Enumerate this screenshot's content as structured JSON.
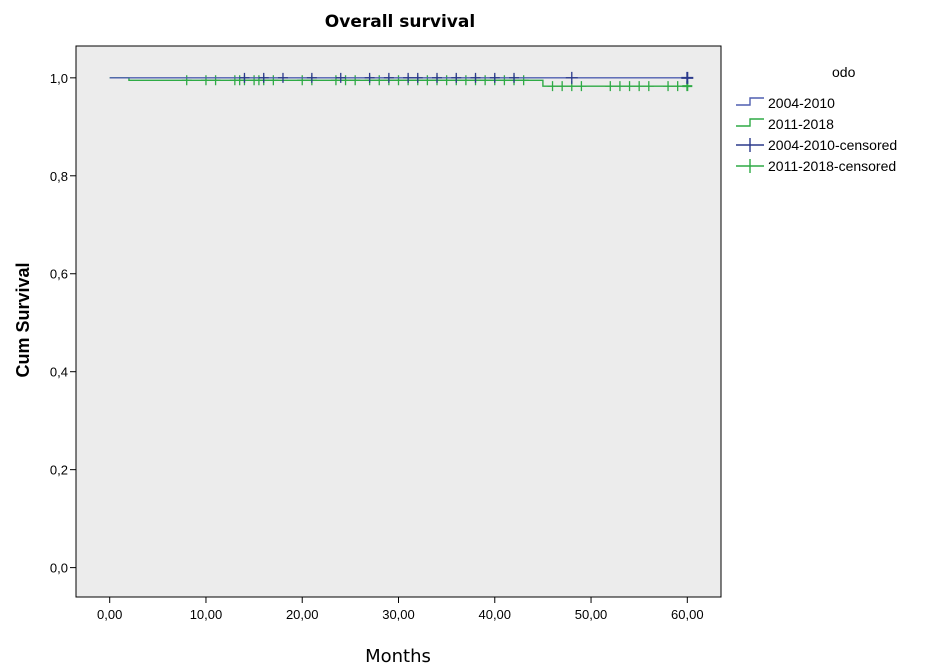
{
  "chart_data": {
    "type": "line",
    "title": "Overall survival",
    "xlabel": "Months",
    "ylabel": "Cum Survival",
    "xlim": [
      -3.5,
      63.5
    ],
    "ylim": [
      -0.06,
      1.065
    ],
    "x_ticks": [
      0,
      10,
      20,
      30,
      40,
      50,
      60
    ],
    "x_tick_labels": [
      "0,00",
      "10,00",
      "20,00",
      "30,00",
      "40,00",
      "50,00",
      "60,00"
    ],
    "y_ticks": [
      0,
      0.2,
      0.4,
      0.6,
      0.8,
      1.0
    ],
    "y_tick_labels": [
      "0,0",
      "0,2",
      "0,4",
      "0,6",
      "0,8",
      "1,0"
    ],
    "grid": false,
    "plot_background": "#ececec",
    "legend": {
      "position": "right",
      "title": "odo",
      "entries": [
        "2004-2010",
        "2011-2018",
        "2004-2010-censored",
        "2011-2018-censored"
      ]
    },
    "series": [
      {
        "name": "2004-2010",
        "color": "#4f5fb0",
        "step": [
          [
            0,
            1.0
          ],
          [
            60,
            1.0
          ]
        ],
        "censored_color": "#2b3a8c",
        "censored": [
          14,
          16,
          18,
          21,
          24,
          27,
          29,
          31,
          32,
          34,
          36,
          38,
          40,
          42,
          48,
          60
        ]
      },
      {
        "name": "2011-2018",
        "color": "#2eaa45",
        "step": [
          [
            0,
            1.0
          ],
          [
            2,
            0.995
          ],
          [
            45,
            0.983
          ],
          [
            60,
            0.983
          ]
        ],
        "censored_color": "#2eaa45",
        "censored": [
          8,
          10,
          11,
          13,
          13.5,
          14,
          15,
          15.5,
          16,
          17,
          20,
          21,
          23.5,
          24.5,
          25.5,
          27,
          28,
          29,
          30,
          31,
          32,
          33,
          34,
          35,
          36,
          37,
          38,
          39,
          40,
          41,
          42,
          43,
          46,
          47,
          48,
          49,
          52,
          53,
          54,
          55,
          56,
          58,
          59,
          60
        ]
      }
    ]
  }
}
